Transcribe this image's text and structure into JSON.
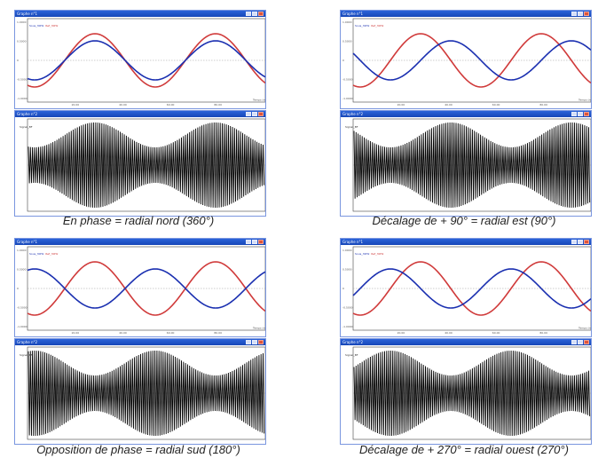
{
  "window": {
    "top_title": "Graphe n°1",
    "bottom_title": "Graphe n°2",
    "legend_blue": "Sous_30Hz",
    "legend_red": "Ref_30Hz",
    "bottom_legend": "Signal_BF",
    "x_axis_label": "Temps (ms)",
    "y_ticks_top": [
      "1.0000",
      "0.5000",
      "0",
      "-0.5000",
      "-1.0000"
    ],
    "y_ticks_bottom": [
      "1.0000",
      "0.5000",
      "0",
      "-0.5000",
      "-1.0000"
    ],
    "x_ticks": [
      "20.00",
      "40.00",
      "60.00",
      "80.00"
    ]
  },
  "colors": {
    "blue_signal": "#1a2fb0",
    "red_signal": "#d03a3a",
    "modulated": "#000000",
    "titlebar": "#2358d2"
  },
  "panels": [
    {
      "id": "nord",
      "caption": "En phase = radial nord (360°)",
      "phase_deg": 0
    },
    {
      "id": "est",
      "caption": "Décalage de + 90° = radial est (90°)",
      "phase_deg": 90
    },
    {
      "id": "sud",
      "caption": "Opposition de phase = radial sud (180°)",
      "phase_deg": 180
    },
    {
      "id": "ouest",
      "caption": "Décalage de + 270° = radial ouest (270°)",
      "phase_deg": 270
    }
  ]
}
